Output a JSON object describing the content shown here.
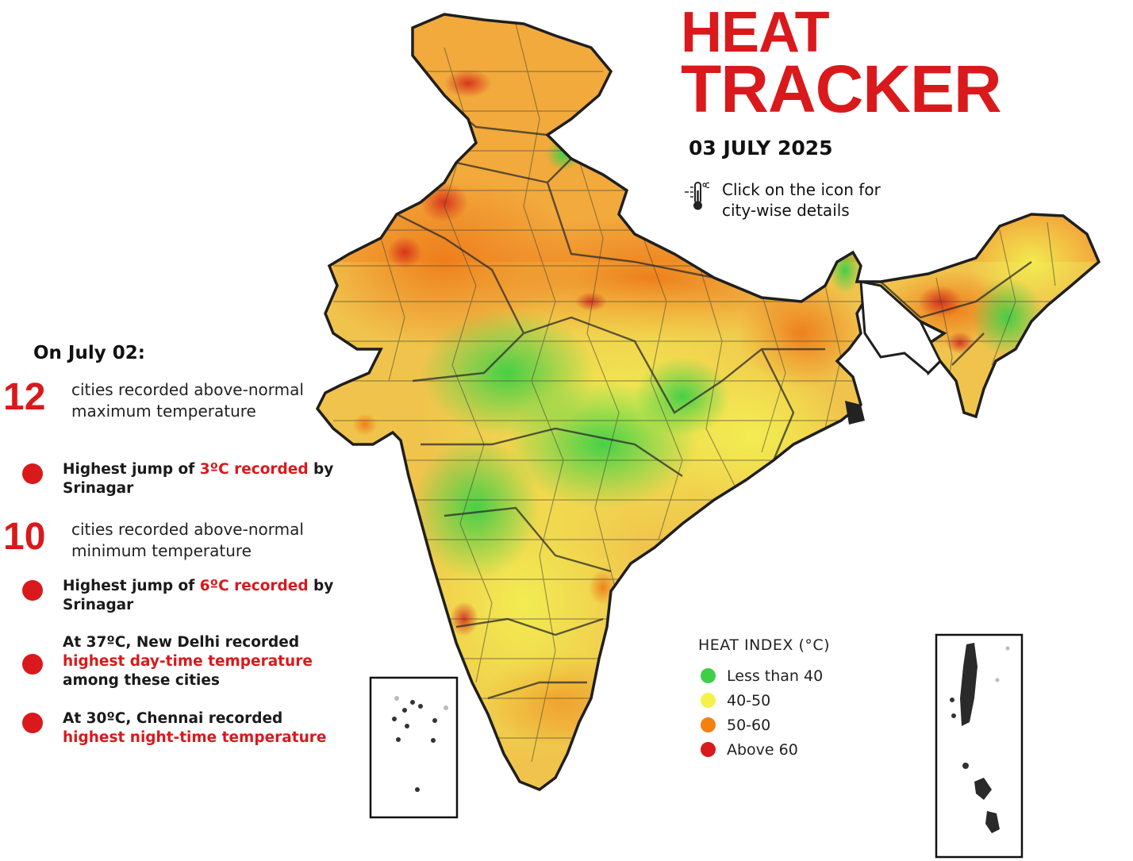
{
  "header": {
    "title_line1": "HEAT",
    "title_line2": "TRACKER",
    "date": "03 JULY 2025",
    "hint_text": "Click on the icon for city-wise details",
    "hint_icon": "thermometer-icon"
  },
  "summary": {
    "heading": "On July 02:",
    "stats": [
      {
        "number": "12",
        "text": "cities recorded above-normal maximum temperature"
      },
      {
        "number": "10",
        "text": "cities recorded above-normal minimum temperature"
      }
    ],
    "bullets": [
      {
        "pre": "Highest jump of ",
        "hl": "3ºC recorded",
        "post": " by Srinagar"
      },
      {
        "pre": "Highest jump of ",
        "hl": "6ºC recorded",
        "post": " by Srinagar"
      },
      {
        "pre": "At 37ºC, New Delhi recorded ",
        "hl": "highest day-time temperature",
        "post": " among these cities"
      },
      {
        "pre": "At 30ºC, Chennai recorded ",
        "hl": "highest night-time temperature",
        "post": ""
      }
    ]
  },
  "legend": {
    "title": "HEAT INDEX (°C)",
    "items": [
      {
        "label": "Less than 40",
        "color": "#3fcf46"
      },
      {
        "label": "40-50",
        "color": "#f4f24a"
      },
      {
        "label": "50-60",
        "color": "#f57f0f"
      },
      {
        "label": "Above 60",
        "color": "#d9191c"
      }
    ]
  },
  "colors": {
    "accent": "#d9191c",
    "green": "#3fcf46",
    "yellow": "#f4f24a",
    "orange": "#f57f0f",
    "red": "#d9191c"
  }
}
